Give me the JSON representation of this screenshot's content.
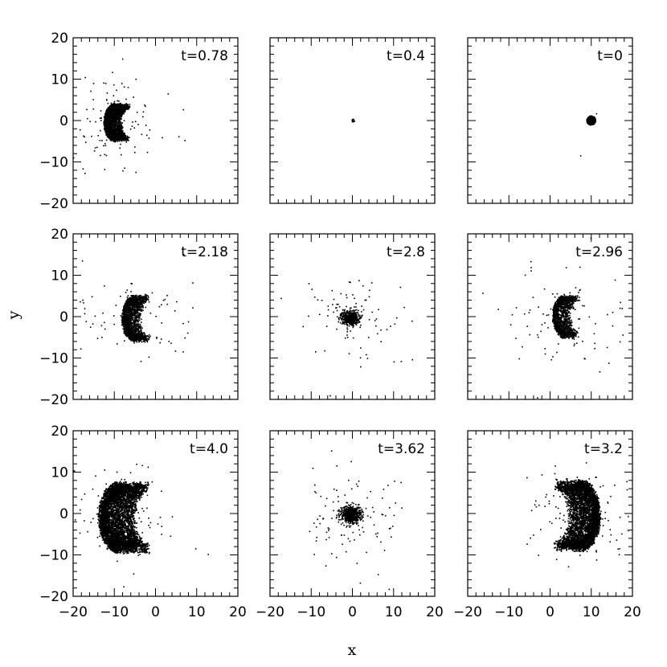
{
  "chart_data": {
    "type": "scatter",
    "layout": "3x3 small multiples",
    "xlabel": "x",
    "ylabel": "y",
    "xlim": [
      -20,
      20
    ],
    "ylim": [
      -20,
      20
    ],
    "x_ticks": [
      -20,
      -10,
      0,
      10,
      20
    ],
    "y_ticks": [
      -20,
      -10,
      0,
      10,
      20
    ],
    "grid": false,
    "point_color": "#000000",
    "panels": [
      {
        "label": "t=0.78",
        "form": "crescent",
        "center": [
          -10,
          -0.5
        ],
        "radius": 4.8,
        "thickness": 4,
        "points": 2600,
        "scatter": 120
      },
      {
        "label": "t=0.4",
        "form": "dot",
        "center": [
          0.2,
          0
        ],
        "radius": 0.35,
        "points": 20,
        "scatter": 0
      },
      {
        "label": "t=0",
        "form": "disk",
        "center": [
          10,
          0
        ],
        "radius": 1.1,
        "points": 400,
        "scatter": 2
      },
      {
        "label": "t=2.18",
        "form": "crescent",
        "center": [
          -5,
          -0.5
        ],
        "radius": 6,
        "thickness": 4,
        "points": 1800,
        "scatter": 90
      },
      {
        "label": "t=2.8",
        "form": "blob",
        "center": [
          -0.5,
          -0.3
        ],
        "radius": 1.8,
        "points": 600,
        "scatter": 90
      },
      {
        "label": "t=2.96",
        "form": "crescent",
        "center": [
          3.5,
          0
        ],
        "radius": 5.5,
        "thickness": 4,
        "points": 1500,
        "scatter": 90
      },
      {
        "label": "t=4.0",
        "form": "crescent",
        "center": [
          -9,
          -1
        ],
        "radius": 9,
        "thickness": 8,
        "points": 5200,
        "scatter": 130
      },
      {
        "label": "t=3.62",
        "form": "blob",
        "center": [
          -0.3,
          -0.3
        ],
        "radius": 2.2,
        "points": 700,
        "scatter": 110
      },
      {
        "label": "t=3.2",
        "form": "crescent-right",
        "center": [
          7.5,
          -0.5
        ],
        "radius": 9,
        "thickness": 7,
        "points": 4300,
        "scatter": 120
      }
    ]
  }
}
